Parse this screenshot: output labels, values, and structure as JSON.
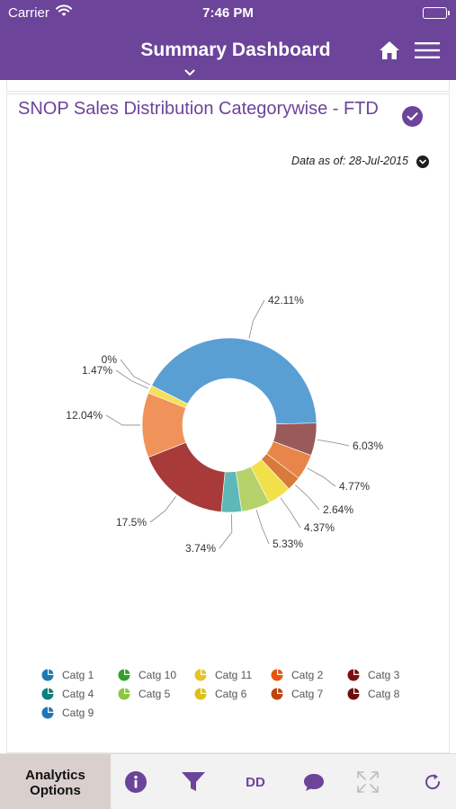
{
  "status_bar": {
    "carrier": "Carrier",
    "time": "7:46 PM"
  },
  "nav": {
    "title": "Summary Dashboard"
  },
  "card": {
    "title": "SNOP Sales Distribution Categorywise - FTD",
    "data_as_of": "Data as of: 28-Jul-2015"
  },
  "chart_data": {
    "type": "pie",
    "variant": "donut",
    "slices": [
      {
        "label": "42.11%",
        "value": 42.11,
        "color": "#5a9fd4"
      },
      {
        "label": "6.03%",
        "value": 6.03,
        "color": "#9a5a5a"
      },
      {
        "label": "4.77%",
        "value": 4.77,
        "color": "#e8854a"
      },
      {
        "label": "2.64%",
        "value": 2.64,
        "color": "#d97a3a"
      },
      {
        "label": "4.37%",
        "value": 4.37,
        "color": "#f2e04a"
      },
      {
        "label": "5.33%",
        "value": 5.33,
        "color": "#b5d26a"
      },
      {
        "label": "3.74%",
        "value": 3.74,
        "color": "#5fb8b8"
      },
      {
        "label": "17.5%",
        "value": 17.5,
        "color": "#a83a3a"
      },
      {
        "label": "12.04%",
        "value": 12.04,
        "color": "#f0935a"
      },
      {
        "label": "1.47%",
        "value": 1.47,
        "color": "#f3e15a"
      },
      {
        "label": "0%",
        "value": 0,
        "color": "#f3e15a"
      }
    ],
    "legend": [
      {
        "label": "Catg 1",
        "color": "#1f78b4"
      },
      {
        "label": "Catg 10",
        "color": "#33a02c"
      },
      {
        "label": "Catg 11",
        "color": "#e6c229"
      },
      {
        "label": "Catg 2",
        "color": "#e6550d"
      },
      {
        "label": "Catg 3",
        "color": "#7f1010"
      },
      {
        "label": "Catg 4",
        "color": "#0f7f7f"
      },
      {
        "label": "Catg 5",
        "color": "#8cc63f"
      },
      {
        "label": "Catg 6",
        "color": "#d9c21a"
      },
      {
        "label": "Catg 7",
        "color": "#c0440f"
      },
      {
        "label": "Catg 8",
        "color": "#6b0f0f"
      },
      {
        "label": "Catg 9",
        "color": "#1f78b4"
      }
    ],
    "legend_position": "bottom"
  },
  "toolbar": {
    "analytics_options": "Analytics Options",
    "dd_label": "DD"
  },
  "colors": {
    "brand": "#6c449a",
    "toolbar_bg": "#f2f2f2",
    "analytics_bg": "#d9cfcd"
  },
  "icons": [
    "wifi-icon",
    "battery-icon",
    "chevron-down-icon",
    "home-icon",
    "menu-icon",
    "check-icon",
    "chevron-down-icon",
    "info-icon",
    "filter-icon",
    "chat-icon",
    "expand-icon",
    "refresh-icon"
  ]
}
